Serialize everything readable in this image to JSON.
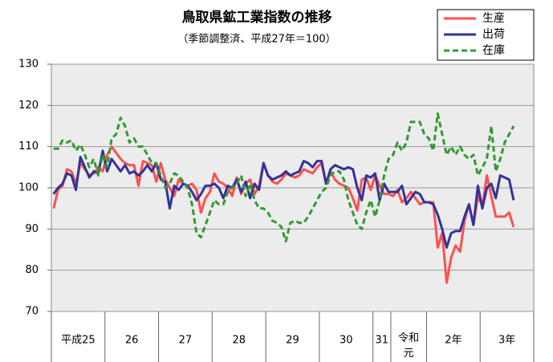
{
  "chart_data": {
    "type": "line",
    "title": "鳥取県鉱工業指数の推移",
    "subtitle": "（季節調整済、平成27年＝100）",
    "categories": [
      "平成25",
      null,
      null,
      null,
      null,
      null,
      null,
      null,
      null,
      null,
      null,
      null,
      "26",
      null,
      null,
      null,
      null,
      null,
      null,
      null,
      null,
      null,
      null,
      null,
      "27",
      null,
      null,
      null,
      null,
      null,
      null,
      null,
      null,
      null,
      null,
      null,
      "28",
      null,
      null,
      null,
      null,
      null,
      null,
      null,
      null,
      null,
      null,
      null,
      "29",
      null,
      null,
      null,
      null,
      null,
      null,
      null,
      null,
      null,
      null,
      null,
      "30",
      null,
      null,
      null,
      null,
      null,
      null,
      null,
      null,
      null,
      null,
      null,
      "31",
      null,
      null,
      null,
      "令和\n元",
      null,
      null,
      null,
      null,
      null,
      null,
      null,
      "2年",
      null,
      null,
      null,
      null,
      null,
      null,
      null,
      null,
      null,
      null,
      null,
      "3年",
      null,
      null,
      null,
      null,
      null,
      null,
      null,
      null,
      null,
      null,
      null
    ],
    "ylim": [
      70,
      130
    ],
    "yticks": [
      70,
      80,
      90,
      100,
      110,
      120,
      130
    ],
    "grid": true,
    "legend": "top-right",
    "series": [
      {
        "name": "生産",
        "color": "#ff5050",
        "dashed": false,
        "values": [
          95,
          99.5,
          100.5,
          104.5,
          104,
          101,
          106,
          104.5,
          103,
          103.5,
          105,
          104,
          108,
          110,
          108.5,
          107,
          106,
          105.5,
          105.5,
          100.5,
          106.5,
          106,
          105.5,
          101.5,
          106,
          102,
          100,
          98,
          102,
          101,
          100.5,
          101,
          99.5,
          94,
          97.5,
          99,
          103.5,
          101.5,
          101,
          100,
          98,
          102.5,
          98.5,
          101,
          102,
          98.5,
          100.5,
          106,
          103,
          101.5,
          101,
          102,
          103.5,
          103,
          102.5,
          103,
          104.5,
          104,
          103.5,
          105,
          106,
          101,
          104,
          102,
          101,
          100.5,
          100,
          97.5,
          94.5,
          102,
          102.5,
          99.5,
          103,
          100.5,
          98.5,
          98.5,
          98,
          99.5,
          96.5,
          97.5,
          99,
          97.5,
          96,
          96.5,
          96.5,
          96.5,
          85.5,
          89,
          77,
          83,
          86,
          84.5,
          92,
          96,
          91,
          98,
          95.5,
          103,
          98,
          93,
          93,
          93,
          94,
          90.5,
          null,
          null,
          null,
          null
        ]
      },
      {
        "name": "出荷",
        "color": "#333399",
        "dashed": false,
        "values": [
          98.5,
          100,
          101,
          103.5,
          103,
          99.5,
          107.5,
          105,
          102.5,
          104,
          103.5,
          109,
          104,
          107,
          105.5,
          104,
          105.5,
          103.5,
          104,
          103,
          104,
          105.5,
          104,
          106,
          102,
          101.5,
          95,
          100.5,
          99.5,
          101,
          100.5,
          99,
          97,
          98.5,
          100.5,
          100.5,
          101,
          100,
          97.5,
          100.5,
          100,
          102,
          99,
          101.5,
          97.5,
          101,
          99.5,
          106,
          103,
          102,
          102.5,
          103,
          104,
          103,
          103.5,
          104,
          106.5,
          106,
          105,
          106.5,
          106.5,
          101,
          104.5,
          105.5,
          105,
          104.5,
          105,
          104.5,
          100,
          97,
          103,
          102.5,
          103.5,
          97,
          101,
          99,
          99,
          99,
          100.5,
          96,
          97.5,
          99,
          98.5,
          96.5,
          96.5,
          96,
          93.5,
          90,
          85.5,
          89,
          89.5,
          89.5,
          93,
          96,
          91,
          100.5,
          95,
          100,
          101,
          97.5,
          103,
          102.5,
          102,
          97,
          null,
          null,
          null,
          null
        ]
      },
      {
        "name": "在庫",
        "color": "#339933",
        "dashed": true,
        "values": [
          109.5,
          109.5,
          111.5,
          111,
          111.5,
          109,
          110.5,
          108,
          105,
          107,
          103,
          108,
          105,
          112,
          113,
          117,
          115,
          111,
          112,
          110,
          110,
          108,
          106,
          106,
          103,
          100,
          101,
          103.5,
          103,
          101.5,
          100,
          96,
          89,
          88,
          91,
          94,
          97,
          96,
          96,
          99,
          100,
          101,
          103,
          98,
          101,
          97,
          95,
          95,
          94,
          92,
          91.5,
          90.5,
          87,
          91.5,
          92,
          91.5,
          91.5,
          93,
          95,
          97,
          99,
          100,
          103,
          104,
          104,
          102,
          97,
          94,
          91,
          90,
          94,
          97,
          93,
          97,
          103,
          107,
          108,
          111,
          109,
          111,
          116,
          116,
          116,
          113,
          112,
          109,
          118,
          113,
          108,
          110,
          108,
          110,
          108,
          107,
          108,
          103,
          105,
          107,
          115,
          104,
          107,
          111,
          113,
          115,
          null,
          null,
          null,
          null
        ]
      }
    ]
  }
}
